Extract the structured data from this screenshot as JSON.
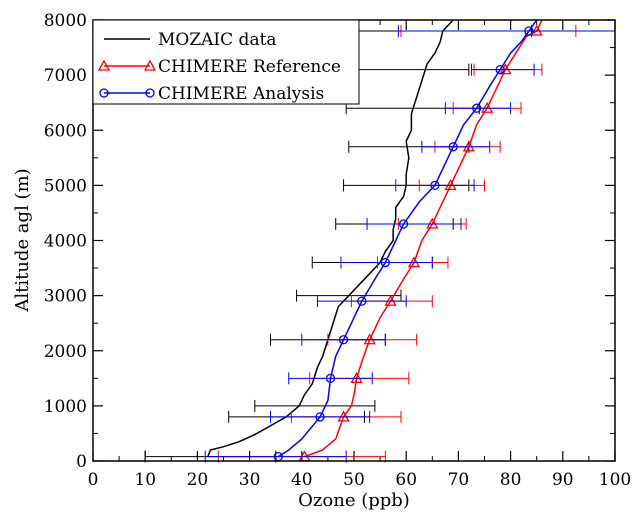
{
  "chart_data": {
    "type": "line",
    "xlabel": "Ozone (ppb)",
    "ylabel": "Altitude agl (m)",
    "xlim": [
      0,
      100
    ],
    "ylim": [
      0,
      8000
    ],
    "x_ticks": [
      0,
      10,
      20,
      30,
      40,
      50,
      60,
      70,
      80,
      90,
      100
    ],
    "y_ticks": [
      0,
      1000,
      2000,
      3000,
      4000,
      5000,
      6000,
      7000,
      8000
    ],
    "grid": false,
    "legend_position": "top-left",
    "colors": {
      "mozaic": "#000000",
      "reference": "#ff0000",
      "analysis": "#0000ff"
    },
    "series": [
      {
        "name": "MOZAIC data",
        "marker": "none",
        "points": [
          [
            22,
            80
          ],
          [
            22.5,
            200
          ],
          [
            25,
            260
          ],
          [
            28,
            350
          ],
          [
            31,
            480
          ],
          [
            34,
            640
          ],
          [
            37,
            800
          ],
          [
            39.5,
            1000
          ],
          [
            40.5,
            1200
          ],
          [
            42,
            1400
          ],
          [
            43,
            1700
          ],
          [
            44,
            1900
          ],
          [
            45,
            2200
          ],
          [
            46,
            2500
          ],
          [
            47,
            2800
          ],
          [
            49,
            3000
          ],
          [
            51,
            3200
          ],
          [
            53,
            3400
          ],
          [
            55,
            3600
          ],
          [
            56,
            3800
          ],
          [
            57.5,
            4000
          ],
          [
            57.5,
            4200
          ],
          [
            58,
            4400
          ],
          [
            58,
            4600
          ],
          [
            59.5,
            4800
          ],
          [
            60,
            5000
          ],
          [
            60,
            5200
          ],
          [
            60.5,
            5500
          ],
          [
            60,
            5800
          ],
          [
            61,
            6000
          ],
          [
            61,
            6300
          ],
          [
            62,
            6600
          ],
          [
            63,
            6900
          ],
          [
            64,
            7200
          ],
          [
            65.5,
            7400
          ],
          [
            66.5,
            7600
          ],
          [
            67,
            7800
          ],
          [
            69,
            8000
          ]
        ],
        "error_bars": [
          {
            "y": 80,
            "low": 10,
            "high": 35
          },
          {
            "y": 800,
            "low": 26,
            "high": 52
          },
          {
            "y": 1000,
            "low": 31,
            "high": 54
          },
          {
            "y": 2200,
            "low": 34,
            "high": 56
          },
          {
            "y": 3000,
            "low": 39,
            "high": 59
          },
          {
            "y": 3600,
            "low": 42,
            "high": 65
          },
          {
            "y": 4300,
            "low": 46.5,
            "high": 69
          },
          {
            "y": 5000,
            "low": 48,
            "high": 72
          },
          {
            "y": 5700,
            "low": 49,
            "high": 72
          },
          {
            "y": 6400,
            "low": 48.5,
            "high": 74
          },
          {
            "y": 7100,
            "low": 0,
            "high": 72
          },
          {
            "y": 7800,
            "low": 0,
            "high": 84
          }
        ]
      },
      {
        "name": "CHIMERE Reference",
        "marker": "triangle",
        "points": [
          [
            40.5,
            80
          ],
          [
            44,
            200
          ],
          [
            46.5,
            400
          ],
          [
            48,
            800
          ],
          [
            49.5,
            1000
          ],
          [
            50,
            1200
          ],
          [
            50.5,
            1500
          ],
          [
            51.5,
            1800
          ],
          [
            53,
            2200
          ],
          [
            55,
            2600
          ],
          [
            57,
            2900
          ],
          [
            59.5,
            3300
          ],
          [
            61.5,
            3600
          ],
          [
            63,
            4000
          ],
          [
            65,
            4300
          ],
          [
            67,
            4700
          ],
          [
            68.5,
            5000
          ],
          [
            70,
            5300
          ],
          [
            72,
            5700
          ],
          [
            73.5,
            6100
          ],
          [
            75.5,
            6400
          ],
          [
            77.5,
            6800
          ],
          [
            79,
            7100
          ],
          [
            81,
            7400
          ],
          [
            83,
            7700
          ],
          [
            85,
            7800
          ],
          [
            86,
            8000
          ]
        ],
        "error_bars": [
          {
            "y": 80,
            "low": 24,
            "high": 56
          },
          {
            "y": 800,
            "low": 38,
            "high": 59
          },
          {
            "y": 1500,
            "low": 41.5,
            "high": 60.5
          },
          {
            "y": 2200,
            "low": 45,
            "high": 62
          },
          {
            "y": 2900,
            "low": 49.5,
            "high": 65
          },
          {
            "y": 3600,
            "low": 54.5,
            "high": 68
          },
          {
            "y": 4300,
            "low": 58.5,
            "high": 71.5
          },
          {
            "y": 5000,
            "low": 62.5,
            "high": 75
          },
          {
            "y": 5700,
            "low": 65.5,
            "high": 78
          },
          {
            "y": 6400,
            "low": 69,
            "high": 82
          },
          {
            "y": 7100,
            "low": 73,
            "high": 86
          },
          {
            "y": 7800,
            "low": 59,
            "high": 92.5
          }
        ]
      },
      {
        "name": "CHIMERE Analysis",
        "marker": "circle",
        "points": [
          [
            35.5,
            80
          ],
          [
            37.5,
            200
          ],
          [
            40,
            400
          ],
          [
            43.5,
            800
          ],
          [
            45,
            1100
          ],
          [
            45.5,
            1500
          ],
          [
            46.5,
            1900
          ],
          [
            48,
            2200
          ],
          [
            50,
            2600
          ],
          [
            51.5,
            2900
          ],
          [
            54,
            3300
          ],
          [
            56,
            3600
          ],
          [
            58,
            4000
          ],
          [
            59.5,
            4300
          ],
          [
            62.5,
            4700
          ],
          [
            65.5,
            5000
          ],
          [
            67,
            5300
          ],
          [
            69,
            5700
          ],
          [
            71,
            6100
          ],
          [
            73.5,
            6400
          ],
          [
            76,
            6800
          ],
          [
            78,
            7100
          ],
          [
            80,
            7400
          ],
          [
            82,
            7600
          ],
          [
            83.5,
            7800
          ],
          [
            85,
            8000
          ]
        ],
        "error_bars": [
          {
            "y": 80,
            "low": 21.5,
            "high": 48.5
          },
          {
            "y": 800,
            "low": 34,
            "high": 53
          },
          {
            "y": 1500,
            "low": 37.5,
            "high": 53.5
          },
          {
            "y": 2200,
            "low": 40,
            "high": 56
          },
          {
            "y": 2900,
            "low": 43,
            "high": 60
          },
          {
            "y": 3600,
            "low": 47.5,
            "high": 65
          },
          {
            "y": 4300,
            "low": 52.5,
            "high": 70.5
          },
          {
            "y": 5000,
            "low": 58,
            "high": 73
          },
          {
            "y": 5700,
            "low": 63,
            "high": 76
          },
          {
            "y": 6400,
            "low": 67.5,
            "high": 80
          },
          {
            "y": 7100,
            "low": 72.5,
            "high": 84.5
          },
          {
            "y": 7800,
            "low": 58.5,
            "high": 100
          }
        ]
      }
    ]
  }
}
